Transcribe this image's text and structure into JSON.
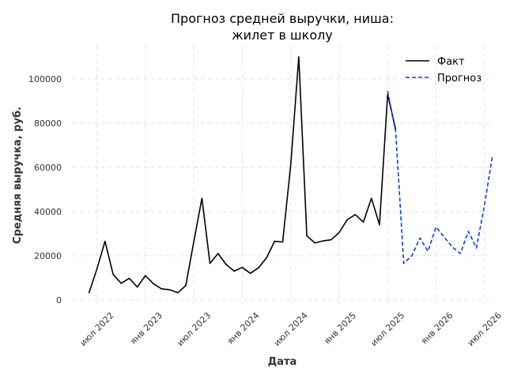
{
  "chart_data": {
    "type": "line",
    "title": [
      "Прогноз средней выручки, ниша:",
      "жилет в школу"
    ],
    "xlabel": "Дата",
    "ylabel": "Средняя выручка, руб.",
    "x_range": [
      "2022-04",
      "2026-08"
    ],
    "ylim": [
      -1500,
      115000
    ],
    "y_ticks": [
      0,
      20000,
      40000,
      60000,
      80000,
      100000
    ],
    "x_ticks": [
      {
        "date": "2022-07",
        "label": "июл 2022"
      },
      {
        "date": "2023-01",
        "label": "янв 2023"
      },
      {
        "date": "2023-07",
        "label": "июл 2023"
      },
      {
        "date": "2024-01",
        "label": "янв 2024"
      },
      {
        "date": "2024-07",
        "label": "июл 2024"
      },
      {
        "date": "2025-01",
        "label": "янв 2025"
      },
      {
        "date": "2025-07",
        "label": "июл 2025"
      },
      {
        "date": "2026-01",
        "label": "янв 2026"
      },
      {
        "date": "2026-07",
        "label": "июл 2026"
      }
    ],
    "grid": true,
    "legend_position": "top-right",
    "series": [
      {
        "name": "Факт",
        "color": "#000000",
        "style": "solid",
        "x": [
          "2022-06",
          "2022-07",
          "2022-08",
          "2022-09",
          "2022-10",
          "2022-11",
          "2022-12",
          "2023-01",
          "2023-02",
          "2023-03",
          "2023-04",
          "2023-05",
          "2023-06",
          "2023-07",
          "2023-08",
          "2023-09",
          "2023-10",
          "2023-11",
          "2023-12",
          "2024-01",
          "2024-02",
          "2024-03",
          "2024-04",
          "2024-05",
          "2024-06",
          "2024-07",
          "2024-08",
          "2024-09",
          "2024-10",
          "2024-11",
          "2024-12",
          "2025-01",
          "2025-02",
          "2025-03",
          "2025-04",
          "2025-05",
          "2025-06",
          "2025-07",
          "2025-08"
        ],
        "y": [
          3000,
          14000,
          26500,
          11500,
          7500,
          9800,
          5800,
          11000,
          7300,
          5000,
          4600,
          3200,
          6500,
          26500,
          46000,
          16500,
          21000,
          16000,
          13000,
          14700,
          12000,
          14500,
          19000,
          26500,
          26200,
          61000,
          110000,
          29000,
          25800,
          26700,
          27200,
          30500,
          36300,
          38600,
          35200,
          46000,
          34000,
          93000,
          77000
        ]
      },
      {
        "name": "Прогноз",
        "color": "#0a3ed6",
        "style": "dashed",
        "x": [
          "2025-07",
          "2025-08",
          "2025-09",
          "2025-10",
          "2025-11",
          "2025-12",
          "2026-01",
          "2026-02",
          "2026-03",
          "2026-04",
          "2026-05",
          "2026-06",
          "2026-07",
          "2026-08"
        ],
        "y": [
          94500,
          76000,
          16500,
          20000,
          28000,
          22000,
          33000,
          28500,
          24000,
          21000,
          31000,
          23500,
          43000,
          65500
        ]
      }
    ]
  }
}
